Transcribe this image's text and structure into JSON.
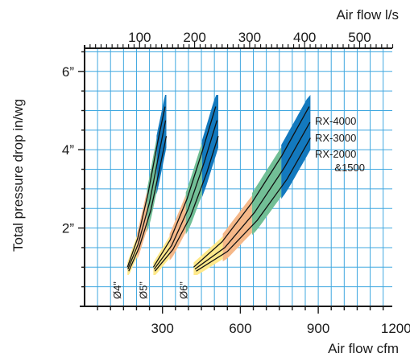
{
  "chart_data": {
    "type": "line",
    "xlabel": "Air flow  cfm",
    "x2label": "Air flow l/s",
    "ylabel": "Total pressure drop in/wg",
    "x_ticks": [
      "300",
      "600",
      "900",
      "1200"
    ],
    "x2_ticks": [
      "100",
      "200",
      "300",
      "400",
      "500"
    ],
    "y_ticks": [
      "2”",
      "4”",
      "6”"
    ],
    "xlim": [
      0,
      1250
    ],
    "ylim": [
      0,
      6.8
    ],
    "grid": true,
    "series_labels": [
      "RX-4000",
      "RX-3000",
      "RX-2000",
      "&1500"
    ],
    "diameters": [
      {
        "label": "Ø4”",
        "curves": [
          {
            "x": [
              165,
              205,
              245,
              280,
              310
            ],
            "y": [
              1.0,
              1.75,
              2.9,
              4.15,
              5.1
            ]
          },
          {
            "x": [
              167,
              207,
              250,
              285,
              312
            ],
            "y": [
              0.95,
              1.6,
              2.65,
              3.85,
              4.75
            ]
          },
          {
            "x": [
              170,
              210,
              255,
              290,
              315
            ],
            "y": [
              0.9,
              1.5,
              2.45,
              3.55,
              4.35
            ]
          }
        ]
      },
      {
        "label": "Ø5”",
        "curves": [
          {
            "x": [
              265,
              330,
              395,
              455,
              505
            ],
            "y": [
              1.0,
              1.7,
              2.75,
              4.0,
              5.1
            ]
          },
          {
            "x": [
              268,
              335,
              400,
              462,
              510
            ],
            "y": [
              0.95,
              1.55,
              2.5,
              3.7,
              4.75
            ]
          },
          {
            "x": [
              271,
              340,
              408,
              470,
              515
            ],
            "y": [
              0.9,
              1.45,
              2.3,
              3.4,
              4.35
            ]
          }
        ]
      },
      {
        "label": "Ø6”",
        "curves": [
          {
            "x": [
              420,
              530,
              645,
              760,
              865
            ],
            "y": [
              1.0,
              1.65,
              2.65,
              3.85,
              5.1
            ]
          },
          {
            "x": [
              425,
              540,
              655,
              770,
              868
            ],
            "y": [
              0.95,
              1.5,
              2.4,
              3.55,
              4.7
            ]
          },
          {
            "x": [
              430,
              550,
              665,
              780,
              870
            ],
            "y": [
              0.9,
              1.4,
              2.2,
              3.25,
              4.3
            ]
          }
        ]
      }
    ],
    "band_colors": [
      "#ffe98a",
      "#f5b889",
      "#72bf96",
      "#1379be"
    ],
    "grid_color": "#40a8e0",
    "curve_color": "#111111"
  }
}
